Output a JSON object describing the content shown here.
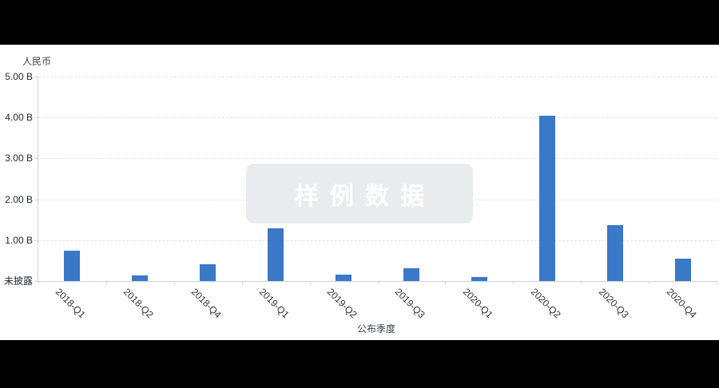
{
  "page": {
    "background_color": "#000000",
    "panel_background_color": "#ffffff"
  },
  "chart_data": {
    "type": "bar",
    "title": "",
    "watermark": "样例数据",
    "y_axis_name": "人民币",
    "x_axis_name": "公布季度",
    "categories": [
      "2018-Q1",
      "2018-Q2",
      "2018-Q4",
      "2019-Q1",
      "2019-Q2",
      "2019-Q3",
      "2020-Q1",
      "2020-Q2",
      "2020-Q3",
      "2020-Q4"
    ],
    "values": [
      0.74,
      0.13,
      0.41,
      1.28,
      0.16,
      0.32,
      0.09,
      4.05,
      1.36,
      0.55
    ],
    "unit": "B",
    "ylim": [
      0,
      5
    ],
    "y_ticks": [
      {
        "label": "5.00 B",
        "value": 5
      },
      {
        "label": "4.00 B",
        "value": 4
      },
      {
        "label": "3.00 B",
        "value": 3
      },
      {
        "label": "2.00 B",
        "value": 2
      },
      {
        "label": "1.00 B",
        "value": 1
      },
      {
        "label": "未披露",
        "value": 0
      }
    ],
    "grid": "dashed horizontal",
    "legend_position": "none",
    "bar_color": "#3a78c8",
    "axis_line_color": "#ccd3dc",
    "gridline_color": "#dfe2e7",
    "label_color": "#2b3240"
  }
}
